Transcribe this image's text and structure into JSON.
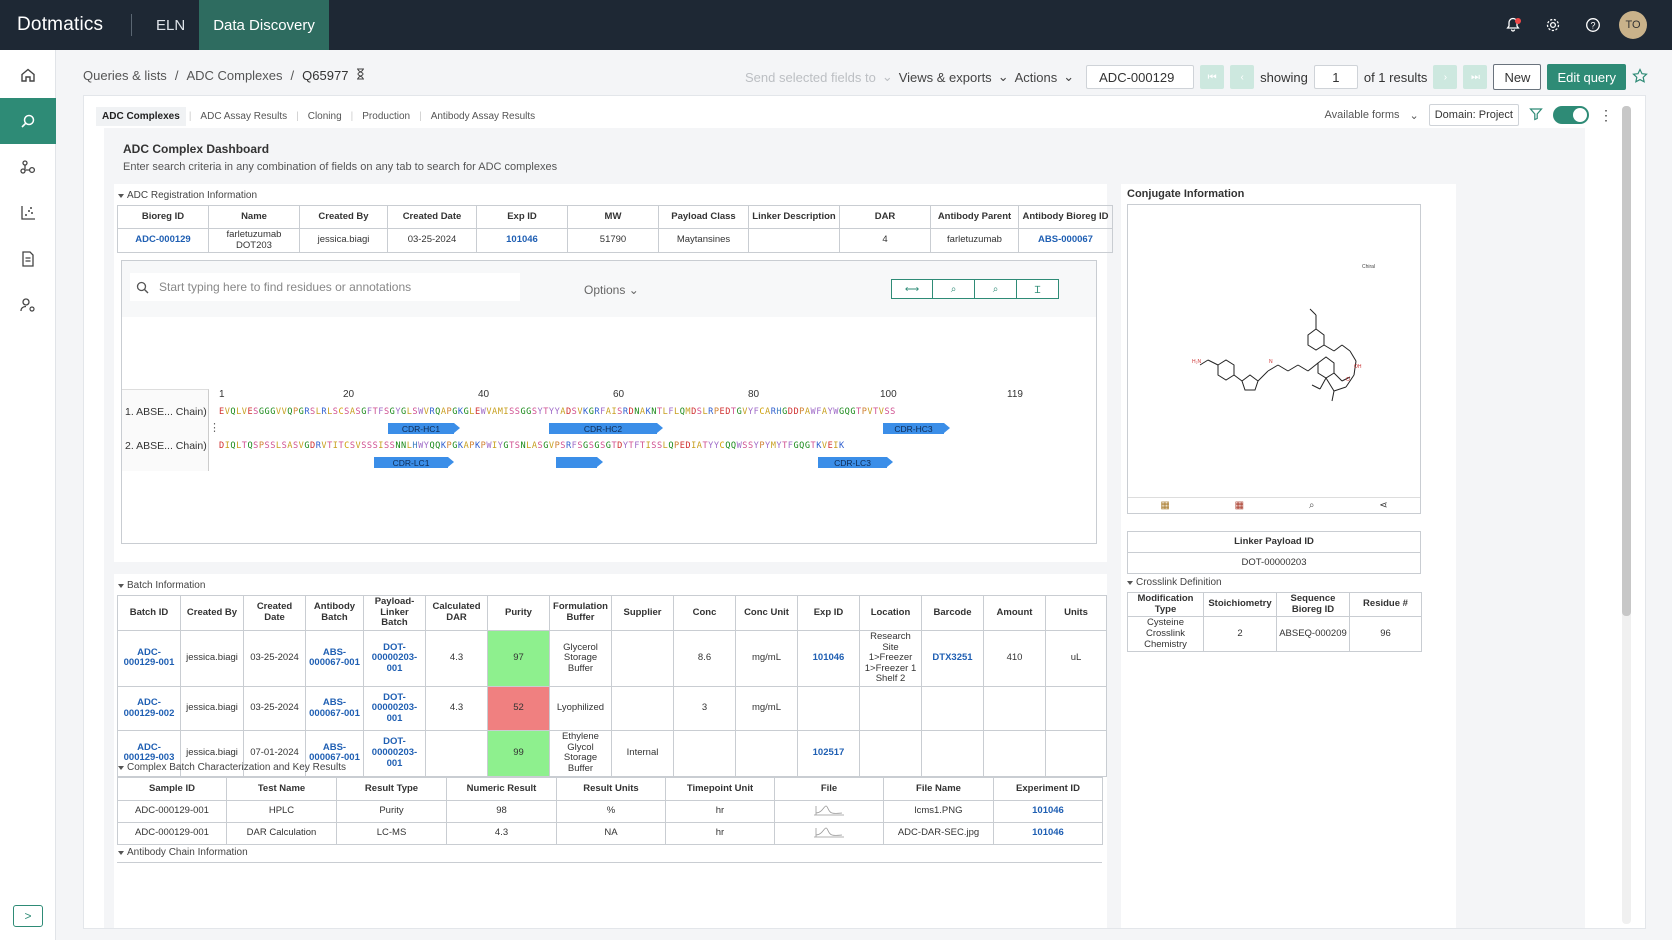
{
  "topbar": {
    "logo": "Dotmatics",
    "tabs": [
      "ELN",
      "Data Discovery"
    ],
    "avatar_initials": "TO",
    "accent": "#2e8b76",
    "bg": "#1e2834"
  },
  "breadcrumb": {
    "items": [
      "Queries & lists",
      "ADC Complexes",
      "Q65977"
    ],
    "sep": "/"
  },
  "toolbar": {
    "send_fields": "Send selected fields to",
    "views_exports": "Views & exports",
    "actions": "Actions",
    "record_id": "ADC-000129",
    "showing": "showing",
    "page": "1",
    "of_results": "of 1 results",
    "new_label": "New",
    "edit_query_label": "Edit query"
  },
  "subtabs": [
    "ADC Complexes",
    "ADC Assay Results",
    "Cloning",
    "Production",
    "Antibody Assay Results"
  ],
  "form_controls": {
    "available_forms": "Available forms",
    "domain": "Domain: Project"
  },
  "dashboard": {
    "title": "ADC Complex Dashboard",
    "subtitle": "Enter search criteria in any combination of fields on any tab to search for ADC complexes"
  },
  "registration": {
    "title": "ADC Registration Information",
    "headers": [
      "Bioreg ID",
      "Name",
      "Created By",
      "Created Date",
      "Exp ID",
      "MW",
      "Payload Class",
      "Linker Description",
      "DAR",
      "Antibody Parent",
      "Antibody Bioreg ID"
    ],
    "row": [
      "ADC-000129",
      "farletuzumab DOT203",
      "jessica.biagi",
      "03-25-2024",
      "101046",
      "51790",
      "Maytansines",
      "",
      "4",
      "farletuzumab",
      "ABS-000067"
    ]
  },
  "sequence": {
    "search_placeholder": "Start typing here to find residues or annotations",
    "options": "Options",
    "ruler": [
      "1",
      "20",
      "40",
      "60",
      "80",
      "100",
      "119"
    ],
    "chain1_label": "1. ABSE... Chain)",
    "chain2_label": "2. ABSE... Chain)",
    "chain1_seq": "EVQLVESGGGVVQPGRSLRLSCSASGFTFSGYGLSWVRQAPGKGLEWVAMISSGGSYTYYADSVKGRFAISRDNAKNTLFLQMDSLRPEDTGVYFCARHGDDPAWFAYWGQGTPVTVSS",
    "chain2_seq": "DIQLTQSPSSLSASVGDRVTITCSVSSSISSNNLHWYQQKPGKAPKPWIYGTSNLASGVPSRFSGSGSGTDYTFTISSLQPEDIATYYCQQWSSYPYMYTFGQGTKVEIK",
    "annotations_chain1": [
      "CDR-HC1",
      "CDR-HC2",
      "CDR-HC3"
    ],
    "annotations_chain2": [
      "CDR-LC1",
      "",
      "CDR-LC3"
    ]
  },
  "batch": {
    "title": "Batch Information",
    "headers": [
      "Batch ID",
      "Created By",
      "Created Date",
      "Antibody Batch",
      "Payload-Linker Batch",
      "Calculated DAR",
      "Purity",
      "Formulation Buffer",
      "Supplier",
      "Conc",
      "Conc Unit",
      "Exp ID",
      "Location",
      "Barcode",
      "Amount",
      "Units"
    ],
    "rows": [
      [
        "ADC-000129-001",
        "jessica.biagi",
        "03-25-2024",
        "ABS-000067-001",
        "DOT-00000203-001",
        "4.3",
        "97",
        "Glycerol Storage Buffer",
        "",
        "8.6",
        "mg/mL",
        "101046",
        "Research Site 1>Freezer 1>Freezer 1 Shelf 2",
        "DTX3251",
        "410",
        "uL"
      ],
      [
        "ADC-000129-002",
        "jessica.biagi",
        "03-25-2024",
        "ABS-000067-001",
        "DOT-00000203-001",
        "4.3",
        "52",
        "Lyophilized",
        "",
        "3",
        "mg/mL",
        "",
        "",
        "",
        "",
        ""
      ],
      [
        "ADC-000129-003",
        "jessica.biagi",
        "07-01-2024",
        "ABS-000067-001",
        "DOT-00000203-001",
        "",
        "99",
        "Ethylene Glycol Storage Buffer",
        "Internal",
        "",
        "",
        "102517",
        "",
        "",
        "",
        ""
      ]
    ],
    "purity_colors": [
      "#8ef08e",
      "#f08080",
      "#8ef08e"
    ]
  },
  "characterization": {
    "title": "Complex Batch Characterization and Key Results",
    "headers": [
      "Sample ID",
      "Test Name",
      "Result Type",
      "Numeric Result",
      "Result Units",
      "Timepoint Unit",
      "File",
      "File Name",
      "Experiment ID"
    ],
    "rows": [
      [
        "ADC-000129-001",
        "HPLC",
        "Purity",
        "98",
        "%",
        "hr",
        "",
        "lcms1.PNG",
        "101046"
      ],
      [
        "ADC-000129-001",
        "DAR Calculation",
        "LC-MS",
        "4.3",
        "NA",
        "hr",
        "",
        "ADC-DAR-SEC.jpg",
        "101046"
      ]
    ]
  },
  "antibody_chain": {
    "title": "Antibody Chain Information"
  },
  "conjugate": {
    "title": "Conjugate Information",
    "chiral_label": "Chiral",
    "linker_payload_header": "Linker Payload ID",
    "linker_payload_value": "DOT-00000203",
    "crosslink_title": "Crosslink Definition",
    "crosslink_headers": [
      "Modification Type",
      "Stoichiometry",
      "Sequence Bioreg ID",
      "Residue #"
    ],
    "crosslink_row": [
      "Cysteine Crosslink Chemistry",
      "2",
      "ABSEQ-000209",
      "96"
    ]
  }
}
